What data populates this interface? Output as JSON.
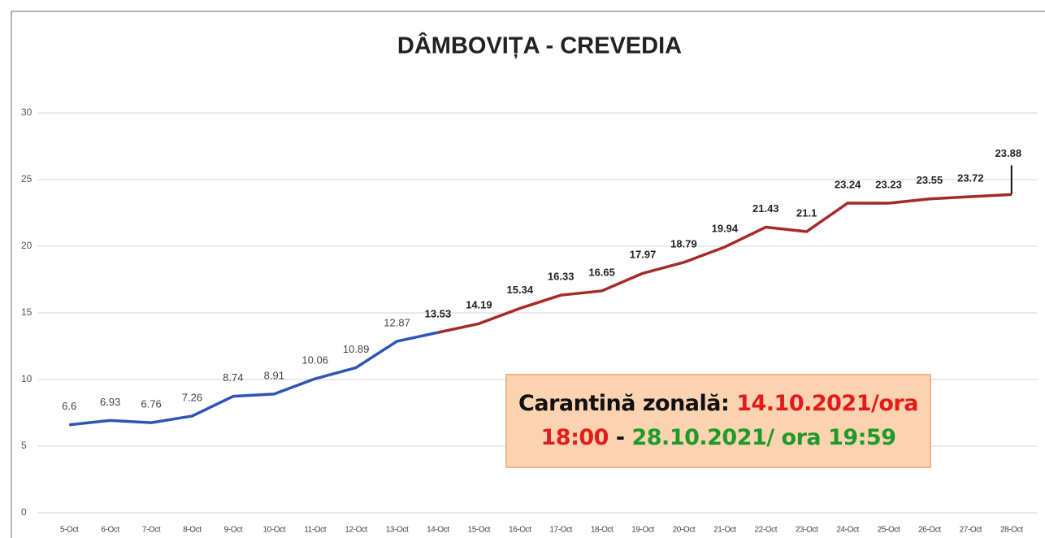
{
  "chart_data": {
    "type": "line",
    "title": "DÂMBOVIȚA - CREVEDIA",
    "categories": [
      "5-Oct",
      "6-Oct",
      "7-Oct",
      "8-Oct",
      "9-Oct",
      "10-Oct",
      "11-Oct",
      "12-Oct",
      "13-Oct",
      "14-Oct",
      "15-Oct",
      "16-Oct",
      "17-Oct",
      "18-Oct",
      "19-Oct",
      "20-Oct",
      "21-Oct",
      "22-Oct",
      "23-Oct",
      "24-Oct",
      "25-Oct",
      "26-Oct",
      "27-Oct",
      "28-Oct"
    ],
    "series": [
      {
        "color": "#2f55b4",
        "values": [
          6.6,
          6.93,
          6.76,
          7.26,
          8.74,
          8.91,
          10.06,
          10.89,
          12.87,
          13.53,
          null,
          null,
          null,
          null,
          null,
          null,
          null,
          null,
          null,
          null,
          null,
          null,
          null,
          null
        ]
      },
      {
        "color": "#a52a2a",
        "values": [
          null,
          null,
          null,
          null,
          null,
          null,
          null,
          null,
          null,
          13.53,
          14.19,
          15.34,
          16.33,
          16.65,
          17.97,
          18.79,
          19.94,
          21.43,
          21.1,
          23.24,
          23.23,
          23.55,
          23.72,
          23.88
        ]
      }
    ],
    "ylim": [
      0,
      30
    ],
    "yticks": [
      0,
      5,
      10,
      15,
      20,
      25,
      30
    ],
    "grid": true,
    "annotation": [
      {
        "text": "Carantină zonală: ",
        "color": "#111111"
      },
      {
        "text": "14.10.2021/ora",
        "color": "#e31b1b"
      },
      {
        "text": "18:00",
        "color": "#e31b1b"
      },
      {
        "text": " - ",
        "color": "#111111"
      },
      {
        "text": "28.10.2021/ ora 19:59",
        "color": "#1f9a2a"
      }
    ]
  }
}
